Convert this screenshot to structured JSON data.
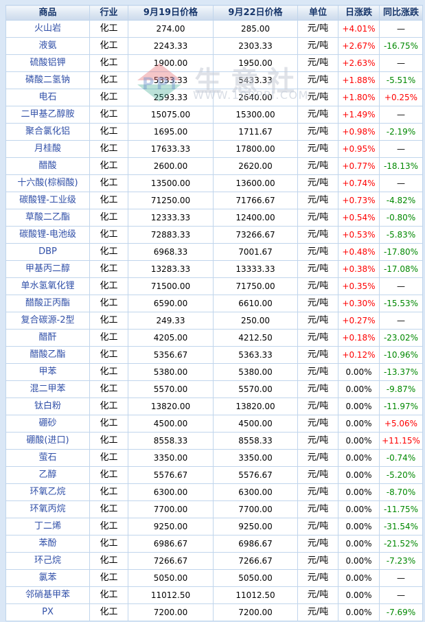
{
  "watermark": {
    "logo_text": "PPI",
    "brand": "生意社",
    "url": "WWW.100PPI.COM"
  },
  "colors": {
    "up": "#fe0000",
    "down": "#008800",
    "neutral": "#000000",
    "product_link": "#3150a8",
    "header_text": "#17366b",
    "border": "#c0d5ec",
    "page_background": "#dae7f6"
  },
  "chart_data": {
    "type": "table",
    "title": "",
    "columns": [
      "商品",
      "行业",
      "9月19日价格",
      "9月22日价格",
      "单位",
      "日涨跌",
      "同比涨跌"
    ],
    "rows": [
      [
        "火山岩",
        "化工",
        "274.00",
        "285.00",
        "元/吨",
        "+4.01%",
        "—"
      ],
      [
        "液氨",
        "化工",
        "2243.33",
        "2303.33",
        "元/吨",
        "+2.67%",
        "-16.75%"
      ],
      [
        "硫酸铝钾",
        "化工",
        "1900.00",
        "1950.00",
        "元/吨",
        "+2.63%",
        "—"
      ],
      [
        "磷酸二氢钠",
        "化工",
        "5333.33",
        "5433.33",
        "元/吨",
        "+1.88%",
        "-5.51%"
      ],
      [
        "电石",
        "化工",
        "2593.33",
        "2640.00",
        "元/吨",
        "+1.80%",
        "+0.25%"
      ],
      [
        "二甲基乙醇胺",
        "化工",
        "15075.00",
        "15300.00",
        "元/吨",
        "+1.49%",
        "—"
      ],
      [
        "聚合氯化铝",
        "化工",
        "1695.00",
        "1711.67",
        "元/吨",
        "+0.98%",
        "-2.19%"
      ],
      [
        "月桂酸",
        "化工",
        "17633.33",
        "17800.00",
        "元/吨",
        "+0.95%",
        "—"
      ],
      [
        "醋酸",
        "化工",
        "2600.00",
        "2620.00",
        "元/吨",
        "+0.77%",
        "-18.13%"
      ],
      [
        "十六酸(棕榈酸)",
        "化工",
        "13500.00",
        "13600.00",
        "元/吨",
        "+0.74%",
        "—"
      ],
      [
        "碳酸锂-工业级",
        "化工",
        "71250.00",
        "71766.67",
        "元/吨",
        "+0.73%",
        "-4.82%"
      ],
      [
        "草酸二乙酯",
        "化工",
        "12333.33",
        "12400.00",
        "元/吨",
        "+0.54%",
        "-0.80%"
      ],
      [
        "碳酸锂-电池级",
        "化工",
        "72883.33",
        "73266.67",
        "元/吨",
        "+0.53%",
        "-5.83%"
      ],
      [
        "DBP",
        "化工",
        "6968.33",
        "7001.67",
        "元/吨",
        "+0.48%",
        "-17.80%"
      ],
      [
        "甲基丙二醇",
        "化工",
        "13283.33",
        "13333.33",
        "元/吨",
        "+0.38%",
        "-17.08%"
      ],
      [
        "单水氢氧化锂",
        "化工",
        "71500.00",
        "71750.00",
        "元/吨",
        "+0.35%",
        "—"
      ],
      [
        "醋酸正丙酯",
        "化工",
        "6590.00",
        "6610.00",
        "元/吨",
        "+0.30%",
        "-15.53%"
      ],
      [
        "复合碳源-2型",
        "化工",
        "249.33",
        "250.00",
        "元/吨",
        "+0.27%",
        "—"
      ],
      [
        "醋酐",
        "化工",
        "4205.00",
        "4212.50",
        "元/吨",
        "+0.18%",
        "-23.02%"
      ],
      [
        "醋酸乙酯",
        "化工",
        "5356.67",
        "5363.33",
        "元/吨",
        "+0.12%",
        "-10.96%"
      ],
      [
        "甲苯",
        "化工",
        "5380.00",
        "5380.00",
        "元/吨",
        "0.00%",
        "-13.37%"
      ],
      [
        "混二甲苯",
        "化工",
        "5570.00",
        "5570.00",
        "元/吨",
        "0.00%",
        "-9.87%"
      ],
      [
        "钛白粉",
        "化工",
        "13820.00",
        "13820.00",
        "元/吨",
        "0.00%",
        "-11.97%"
      ],
      [
        "硼砂",
        "化工",
        "4500.00",
        "4500.00",
        "元/吨",
        "0.00%",
        "+5.06%"
      ],
      [
        "硼酸(进口)",
        "化工",
        "8558.33",
        "8558.33",
        "元/吨",
        "0.00%",
        "+11.15%"
      ],
      [
        "萤石",
        "化工",
        "3350.00",
        "3350.00",
        "元/吨",
        "0.00%",
        "-0.74%"
      ],
      [
        "乙醇",
        "化工",
        "5576.67",
        "5576.67",
        "元/吨",
        "0.00%",
        "-5.20%"
      ],
      [
        "环氧乙烷",
        "化工",
        "6300.00",
        "6300.00",
        "元/吨",
        "0.00%",
        "-8.70%"
      ],
      [
        "环氧丙烷",
        "化工",
        "7700.00",
        "7700.00",
        "元/吨",
        "0.00%",
        "-11.75%"
      ],
      [
        "丁二烯",
        "化工",
        "9250.00",
        "9250.00",
        "元/吨",
        "0.00%",
        "-31.54%"
      ],
      [
        "苯酚",
        "化工",
        "6986.67",
        "6986.67",
        "元/吨",
        "0.00%",
        "-21.52%"
      ],
      [
        "环己烷",
        "化工",
        "7266.67",
        "7266.67",
        "元/吨",
        "0.00%",
        "-7.23%"
      ],
      [
        "氯苯",
        "化工",
        "5050.00",
        "5050.00",
        "元/吨",
        "0.00%",
        "—"
      ],
      [
        "邻硝基甲苯",
        "化工",
        "11012.50",
        "11012.50",
        "元/吨",
        "0.00%",
        "—"
      ],
      [
        "PX",
        "化工",
        "7200.00",
        "7200.00",
        "元/吨",
        "0.00%",
        "-7.69%"
      ]
    ]
  }
}
